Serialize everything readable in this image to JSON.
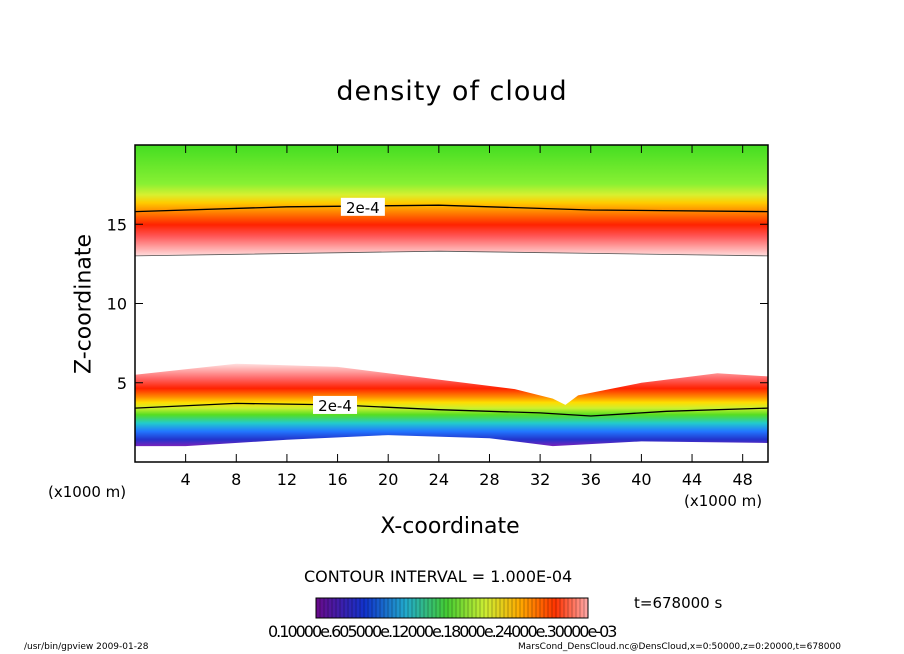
{
  "chart_data": {
    "type": "heatmap",
    "title": "density of cloud",
    "xlabel": "X-coordinate",
    "ylabel": "Z-coordinate",
    "x_unit": "(x1000 m)",
    "xlim": [
      0,
      50
    ],
    "ylim": [
      0,
      20
    ],
    "x_ticks": [
      4,
      8,
      12,
      16,
      20,
      24,
      28,
      32,
      36,
      40,
      44,
      48
    ],
    "y_ticks": [
      5,
      10,
      15
    ],
    "contour_label": "2e-4",
    "contour_interval": "CONTOUR INTERVAL = 1.000E-04",
    "time": "t=678000 s",
    "colorbar_labels": "0.10000e.605000e.12000e.18000e.24000e.30000e-03",
    "upper_layer": {
      "top": 20,
      "peak": [
        {
          "x": 0,
          "z": 14.2
        },
        {
          "x": 24,
          "z": 14.5
        },
        {
          "x": 50,
          "z": 14.2
        }
      ],
      "bottom": [
        {
          "x": 0,
          "z": 13.0
        },
        {
          "x": 24,
          "z": 13.3
        },
        {
          "x": 50,
          "z": 13.0
        }
      ],
      "contour_2e-4": [
        {
          "x": 0,
          "z": 15.8
        },
        {
          "x": 12,
          "z": 16.1
        },
        {
          "x": 24,
          "z": 16.2
        },
        {
          "x": 36,
          "z": 15.9
        },
        {
          "x": 50,
          "z": 15.8
        }
      ]
    },
    "lower_layer": {
      "top": [
        {
          "x": 0,
          "z": 5.5
        },
        {
          "x": 8,
          "z": 6.2
        },
        {
          "x": 16,
          "z": 6.0
        },
        {
          "x": 24,
          "z": 5.2
        },
        {
          "x": 30,
          "z": 4.6
        },
        {
          "x": 33,
          "z": 4.0
        },
        {
          "x": 34,
          "z": 3.6
        },
        {
          "x": 35,
          "z": 4.2
        },
        {
          "x": 40,
          "z": 5.0
        },
        {
          "x": 46,
          "z": 5.6
        },
        {
          "x": 50,
          "z": 5.4
        }
      ],
      "contour_2e-4": [
        {
          "x": 0,
          "z": 3.4
        },
        {
          "x": 8,
          "z": 3.7
        },
        {
          "x": 16,
          "z": 3.6
        },
        {
          "x": 24,
          "z": 3.3
        },
        {
          "x": 32,
          "z": 3.1
        },
        {
          "x": 36,
          "z": 2.9
        },
        {
          "x": 42,
          "z": 3.2
        },
        {
          "x": 50,
          "z": 3.4
        }
      ],
      "bottom": [
        {
          "x": 4,
          "z": 1.0
        },
        {
          "x": 12,
          "z": 1.4
        },
        {
          "x": 20,
          "z": 1.7
        },
        {
          "x": 28,
          "z": 1.5
        },
        {
          "x": 33,
          "z": 1.0
        },
        {
          "x": 40,
          "z": 1.3
        },
        {
          "x": 50,
          "z": 1.2
        }
      ]
    }
  },
  "footer": {
    "left": "/usr/bin/gpview  2009-01-28",
    "right": "MarsCond_DensCloud.nc@DensCloud,x=0:50000,z=0:20000,t=678000"
  }
}
